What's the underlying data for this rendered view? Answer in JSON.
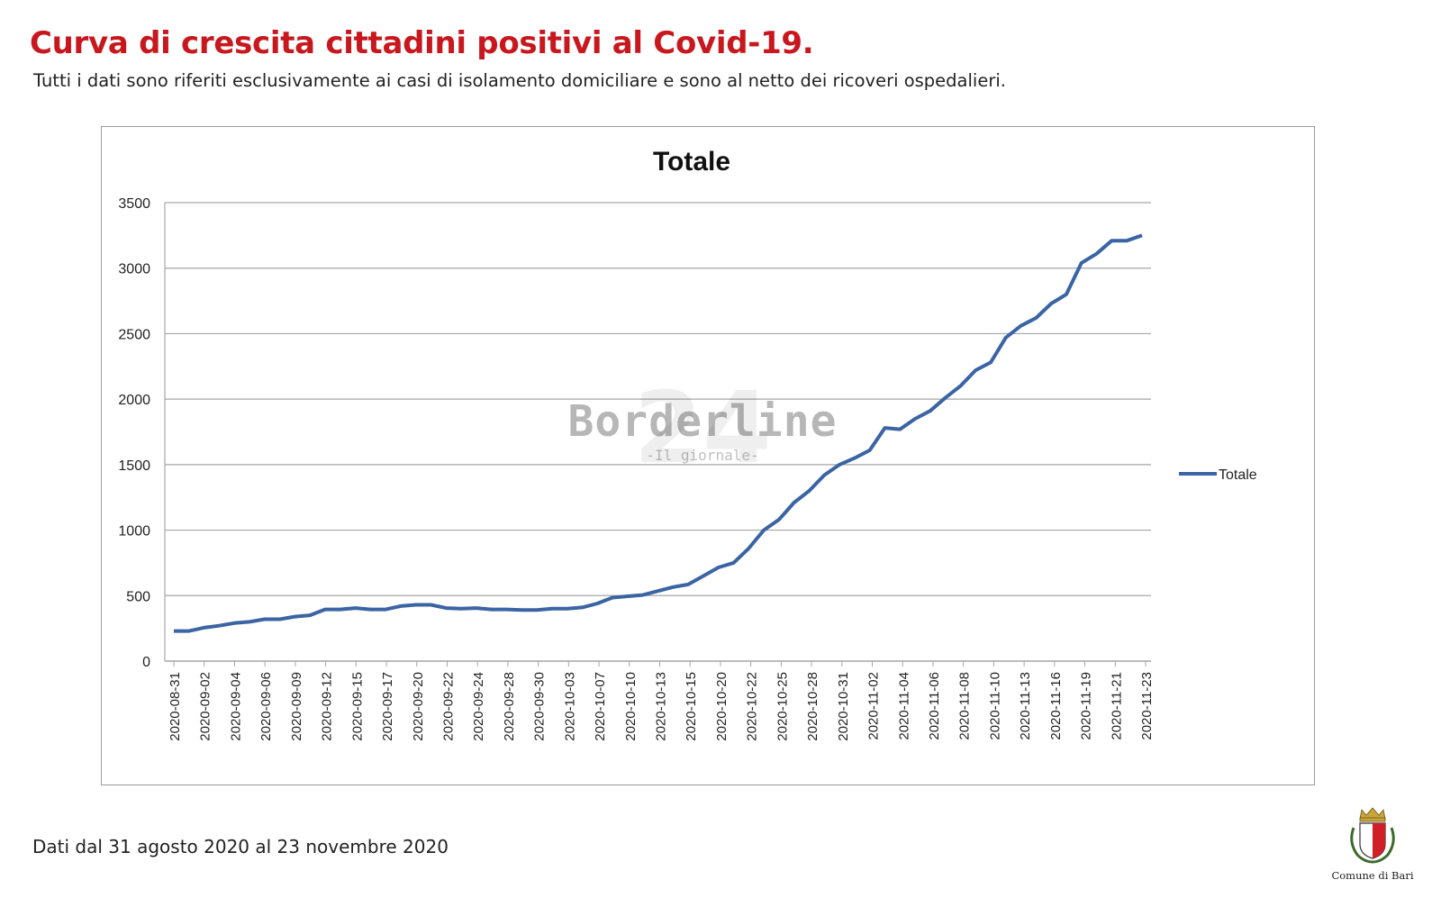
{
  "header": {
    "title": "Curva di crescita cittadini positivi al Covid-19.",
    "subtitle": "Tutti i dati sono riferiti esclusivamente ai casi di isolamento domiciliare e sono al netto dei ricoveri ospedalieri."
  },
  "watermark": {
    "number": "24",
    "text": "Borderline",
    "subtext": "-Il giornale-"
  },
  "footer": {
    "note": "Dati dal 31 agosto 2020 al 23 novembre 2020"
  },
  "logo": {
    "caption": "Comune di Bari"
  },
  "colors": {
    "title": "#c8181e",
    "series": "#3a64a3",
    "grid": "#a6a6a6"
  },
  "chart_data": {
    "type": "line",
    "title": "Totale",
    "xlabel": "",
    "ylabel": "",
    "ylim": [
      0,
      3500
    ],
    "yticks": [
      0,
      500,
      1000,
      1500,
      2000,
      2500,
      3000,
      3500
    ],
    "grid": true,
    "legend": "right",
    "x_tick_labels": [
      "2020-08-31",
      "2020-09-02",
      "2020-09-04",
      "2020-09-06",
      "2020-09-09",
      "2020-09-12",
      "2020-09-15",
      "2020-09-17",
      "2020-09-20",
      "2020-09-22",
      "2020-09-24",
      "2020-09-28",
      "2020-09-30",
      "2020-10-03",
      "2020-10-07",
      "2020-10-10",
      "2020-10-13",
      "2020-10-15",
      "2020-10-20",
      "2020-10-22",
      "2020-10-25",
      "2020-10-28",
      "2020-10-31",
      "2020-11-02",
      "2020-11-04",
      "2020-11-06",
      "2020-11-08",
      "2020-11-10",
      "2020-11-13",
      "2020-11-16",
      "2020-11-19",
      "2020-11-21",
      "2020-11-23"
    ],
    "series": [
      {
        "name": "Totale",
        "values": [
          230,
          230,
          255,
          270,
          290,
          300,
          320,
          320,
          340,
          350,
          395,
          395,
          405,
          395,
          395,
          420,
          430,
          430,
          405,
          400,
          405,
          395,
          395,
          390,
          390,
          400,
          400,
          410,
          440,
          485,
          495,
          505,
          535,
          565,
          585,
          650,
          715,
          750,
          860,
          1000,
          1080,
          1210,
          1300,
          1420,
          1500,
          1550,
          1610,
          1780,
          1770,
          1850,
          1910,
          2010,
          2100,
          2220,
          2280,
          2470,
          2560,
          2620,
          2730,
          2800,
          3040,
          3110,
          3210,
          3210,
          3250
        ]
      }
    ]
  }
}
